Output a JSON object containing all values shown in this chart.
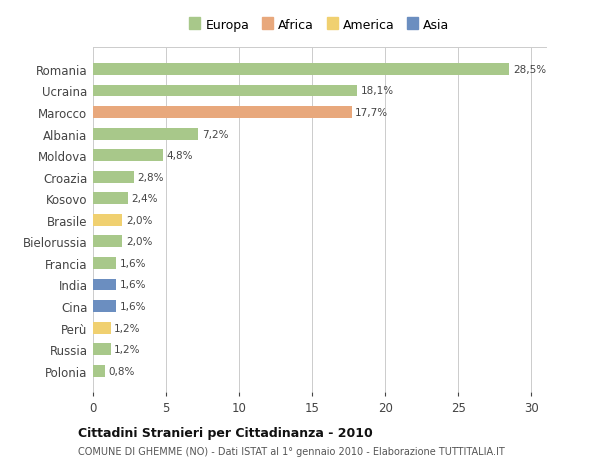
{
  "categories": [
    "Romania",
    "Ucraina",
    "Marocco",
    "Albania",
    "Moldova",
    "Croazia",
    "Kosovo",
    "Brasile",
    "Bielorussia",
    "Francia",
    "India",
    "Cina",
    "Perù",
    "Russia",
    "Polonia"
  ],
  "values": [
    28.5,
    18.1,
    17.7,
    7.2,
    4.8,
    2.8,
    2.4,
    2.0,
    2.0,
    1.6,
    1.6,
    1.6,
    1.2,
    1.2,
    0.8
  ],
  "labels": [
    "28,5%",
    "18,1%",
    "17,7%",
    "7,2%",
    "4,8%",
    "2,8%",
    "2,4%",
    "2,0%",
    "2,0%",
    "1,6%",
    "1,6%",
    "1,6%",
    "1,2%",
    "1,2%",
    "0,8%"
  ],
  "continents": [
    "Europa",
    "Europa",
    "Africa",
    "Europa",
    "Europa",
    "Europa",
    "Europa",
    "America",
    "Europa",
    "Europa",
    "Asia",
    "Asia",
    "America",
    "Europa",
    "Europa"
  ],
  "colors": {
    "Europa": "#a8c88a",
    "Africa": "#e8a87c",
    "America": "#f0d070",
    "Asia": "#6b8ec0"
  },
  "legend_order": [
    "Europa",
    "Africa",
    "America",
    "Asia"
  ],
  "bg_color": "#ffffff",
  "plot_bg_color": "#f5f5f5",
  "grid_color": "#cccccc",
  "title": "Cittadini Stranieri per Cittadinanza - 2010",
  "subtitle": "COMUNE DI GHEMME (NO) - Dati ISTAT al 1° gennaio 2010 - Elaborazione TUTTITALIA.IT",
  "xlim": [
    0,
    31
  ],
  "xticks": [
    0,
    5,
    10,
    15,
    20,
    25,
    30
  ]
}
